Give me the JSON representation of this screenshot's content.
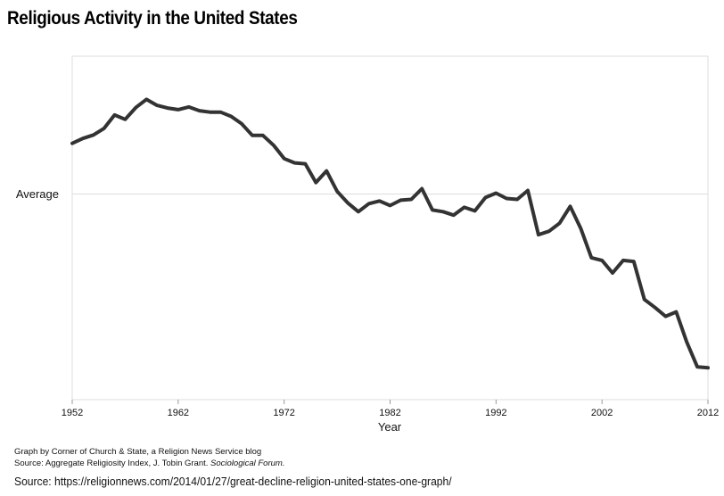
{
  "chart_data": {
    "type": "line",
    "title": "Religious Activity in the United States",
    "xlabel": "Year",
    "ylabel": "",
    "xlim": [
      1952,
      2012
    ],
    "ylim": [
      -100,
      67
    ],
    "x_ticks": [
      "1952",
      "1962",
      "1972",
      "1982",
      "1992",
      "2002",
      "2012"
    ],
    "reference_line": {
      "label": "Average",
      "value": 0
    },
    "grid": false,
    "series": [
      {
        "x": [
          1952,
          1953,
          1954,
          1955,
          1956,
          1957,
          1958,
          1959,
          1960,
          1961,
          1962,
          1963,
          1964,
          1965,
          1966,
          1967,
          1968,
          1969,
          1970,
          1971,
          1972,
          1973,
          1974,
          1975,
          1976,
          1977,
          1978,
          1979,
          1980,
          1981,
          1982,
          1983,
          1984,
          1985,
          1986,
          1987,
          1988,
          1989,
          1990,
          1991,
          1992,
          1993,
          1994,
          1995,
          1996,
          1997,
          1998,
          1999,
          2000,
          2001,
          2002,
          2003,
          2004,
          2005,
          2006,
          2007,
          2008,
          2009,
          2010,
          2011,
          2012
        ],
        "y": [
          24.6,
          27.0,
          28.7,
          31.9,
          38.4,
          36.3,
          42.0,
          46.0,
          43.1,
          41.8,
          41.0,
          42.3,
          40.5,
          39.8,
          39.8,
          37.7,
          34.1,
          28.5,
          28.5,
          23.7,
          17.2,
          15.1,
          14.7,
          5.6,
          11.2,
          1.3,
          -4.3,
          -8.6,
          -4.7,
          -3.4,
          -5.6,
          -3.0,
          -2.6,
          2.6,
          -7.8,
          -8.6,
          -10.3,
          -6.5,
          -8.2,
          -1.7,
          0.4,
          -2.2,
          -2.6,
          1.7,
          -19.8,
          -18.1,
          -14.2,
          -6.0,
          -16.8,
          -31.0,
          -32.3,
          -38.4,
          -32.3,
          -32.8,
          -51.3,
          -55.2,
          -59.5,
          -57.3,
          -72.0,
          -84.1,
          -84.5
        ]
      }
    ]
  },
  "footnotes": {
    "line1": "Graph by Corner of Church & State, a Religion News Service blog",
    "line2_prefix": "Source: Aggregate Religiosity Index, J. Tobin Grant. ",
    "line2_journal": "Sociological Forum.",
    "source": "Source: https://religionnews.com/2014/01/27/great-decline-religion-united-states-one-graph/"
  }
}
